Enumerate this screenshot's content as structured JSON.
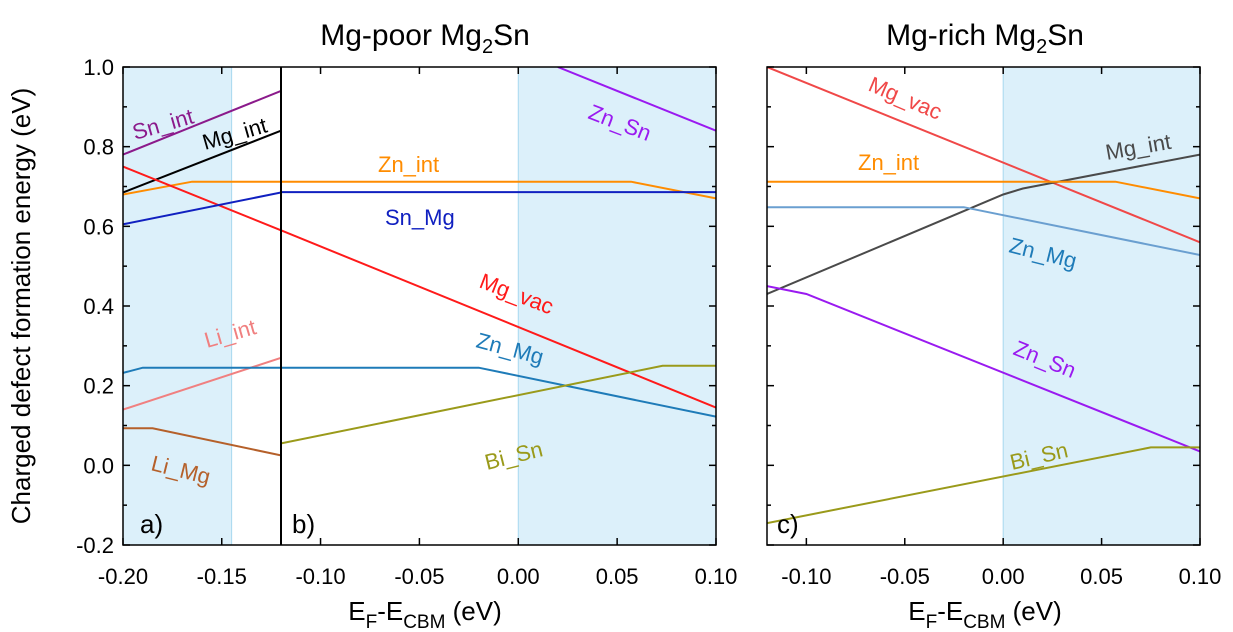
{
  "figure": {
    "ylabel": "Charged defect formation energy (eV)",
    "ylim": [
      -0.2,
      1.0
    ],
    "yticks": [
      "-0.2",
      "0.0",
      "0.2",
      "0.4",
      "0.6",
      "0.8",
      "1.0"
    ]
  },
  "chart_data": [
    {
      "type": "line",
      "panel": "a)",
      "title": "",
      "xlim": [
        -0.2,
        -0.12
      ],
      "ylim": [
        -0.2,
        1.0
      ],
      "xticks": [
        "-0.20",
        "-0.15"
      ],
      "shaded_regions": [
        [
          -0.2,
          -0.145
        ]
      ],
      "series": [
        {
          "name": "Sn_int",
          "color": "#8b1a8b",
          "points": [
            [
              -0.2,
              0.78
            ],
            [
              -0.12,
              0.94
            ]
          ]
        },
        {
          "name": "Mg_int",
          "color": "#000000",
          "points": [
            [
              -0.2,
              0.685
            ],
            [
              -0.12,
              0.84
            ]
          ]
        },
        {
          "name": "",
          "color": "#ff8c00",
          "points": [
            [
              -0.2,
              0.68
            ],
            [
              -0.165,
              0.712
            ],
            [
              -0.12,
              0.712
            ]
          ]
        },
        {
          "name": "",
          "color": "#ff1a1a",
          "points": [
            [
              -0.2,
              0.75
            ],
            [
              -0.12,
              0.59
            ]
          ]
        },
        {
          "name": "",
          "color": "#1020c0",
          "points": [
            [
              -0.2,
              0.605
            ],
            [
              -0.12,
              0.685
            ]
          ]
        },
        {
          "name": "Li_int",
          "color": "#f08080",
          "points": [
            [
              -0.2,
              0.14
            ],
            [
              -0.12,
              0.27
            ]
          ]
        },
        {
          "name": "",
          "color": "#1e7bb8",
          "points": [
            [
              -0.2,
              0.232
            ],
            [
              -0.19,
              0.245
            ],
            [
              -0.12,
              0.245
            ]
          ]
        },
        {
          "name": "Li_Mg",
          "color": "#b5602a",
          "points": [
            [
              -0.2,
              0.093
            ],
            [
              -0.185,
              0.093
            ],
            [
              -0.12,
              0.025
            ]
          ]
        }
      ]
    },
    {
      "type": "line",
      "panel": "b)",
      "title": "Mg-poor Mg2Sn",
      "xlabel": "EF-ECBM (eV)",
      "xlim": [
        -0.12,
        0.1
      ],
      "ylim": [
        -0.2,
        1.0
      ],
      "xticks": [
        "-0.10",
        "-0.05",
        "0.00",
        "0.05",
        "0.10"
      ],
      "shaded_regions": [
        [
          0.0,
          0.1
        ]
      ],
      "series": [
        {
          "name": "Zn_Sn",
          "color": "#9a1af0",
          "points": [
            [
              0.02,
              1.0
            ],
            [
              0.1,
              0.84
            ]
          ]
        },
        {
          "name": "Zn_int",
          "color": "#ff8c00",
          "points": [
            [
              -0.12,
              0.712
            ],
            [
              0.057,
              0.712
            ],
            [
              0.1,
              0.67
            ]
          ]
        },
        {
          "name": "Sn_Mg",
          "color": "#1020c0",
          "points": [
            [
              -0.12,
              0.686
            ],
            [
              0.1,
              0.686
            ]
          ]
        },
        {
          "name": "Mg_vac",
          "color": "#ff1a1a",
          "points": [
            [
              -0.12,
              0.59
            ],
            [
              0.1,
              0.145
            ]
          ]
        },
        {
          "name": "Zn_Mg",
          "color": "#1e7bb8",
          "points": [
            [
              -0.12,
              0.245
            ],
            [
              -0.02,
              0.245
            ],
            [
              0.1,
              0.122
            ]
          ]
        },
        {
          "name": "Bi_Sn",
          "color": "#9a9a1a",
          "points": [
            [
              -0.12,
              0.055
            ],
            [
              0.073,
              0.25
            ],
            [
              0.1,
              0.25
            ]
          ]
        }
      ]
    },
    {
      "type": "line",
      "panel": "c)",
      "title": "Mg-rich Mg2Sn",
      "xlabel": "EF-ECBM (eV)",
      "xlim": [
        -0.12,
        0.1
      ],
      "ylim": [
        -0.2,
        1.0
      ],
      "xticks": [
        "-0.10",
        "-0.05",
        "0.00",
        "0.05",
        "0.10"
      ],
      "shaded_regions": [
        [
          0.0,
          0.1
        ]
      ],
      "series": [
        {
          "name": "Mg_vac",
          "color": "#f04848",
          "points": [
            [
              -0.12,
              1.0
            ],
            [
              0.1,
              0.56
            ]
          ]
        },
        {
          "name": "Mg_int",
          "color": "#4a4a4a",
          "points": [
            [
              -0.12,
              0.43
            ],
            [
              0.0,
              0.68
            ],
            [
              0.01,
              0.695
            ],
            [
              0.1,
              0.78
            ]
          ]
        },
        {
          "name": "Zn_int",
          "color": "#ff8c00",
          "points": [
            [
              -0.12,
              0.712
            ],
            [
              0.057,
              0.712
            ],
            [
              0.1,
              0.67
            ]
          ]
        },
        {
          "name": "Zn_Mg",
          "color": "#6a9fd0",
          "points": [
            [
              -0.12,
              0.648
            ],
            [
              -0.02,
              0.648
            ],
            [
              0.1,
              0.528
            ]
          ]
        },
        {
          "name": "Zn_Sn",
          "color": "#9a1af0",
          "points": [
            [
              -0.12,
              0.45
            ],
            [
              -0.1,
              0.43
            ],
            [
              0.1,
              0.035
            ]
          ]
        },
        {
          "name": "Bi_Sn",
          "color": "#9a9a1a",
          "points": [
            [
              -0.12,
              -0.145
            ],
            [
              0.075,
              0.045
            ],
            [
              0.1,
              0.045
            ]
          ]
        }
      ]
    }
  ]
}
